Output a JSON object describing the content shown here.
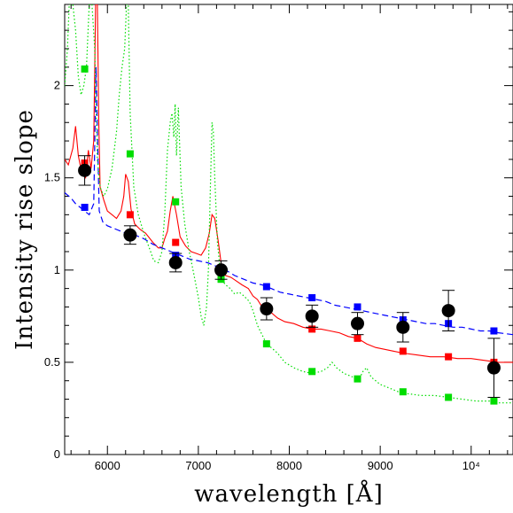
{
  "chart_data": {
    "type": "scatter",
    "xlabel": "wavelength [Å]",
    "ylabel": "Intensity rise slope",
    "xlim": [
      5530,
      10460
    ],
    "ylim": [
      0,
      2.44
    ],
    "x_ticks": [
      {
        "value": 6000,
        "label": "6000"
      },
      {
        "value": 7000,
        "label": "7000"
      },
      {
        "value": 8000,
        "label": "8000"
      },
      {
        "value": 9000,
        "label": "9000"
      },
      {
        "value": 10000,
        "label": "10⁴"
      }
    ],
    "y_ticks": [
      {
        "value": 0,
        "label": "0"
      },
      {
        "value": 0.5,
        "label": "0.5"
      },
      {
        "value": 1,
        "label": "1"
      },
      {
        "value": 1.5,
        "label": "1.5"
      },
      {
        "value": 2,
        "label": "2"
      }
    ],
    "colors": {
      "observed": "#000000",
      "red_model": "#ff0000",
      "blue_model": "#0000ff",
      "green_model": "#00dd00"
    },
    "observed": [
      {
        "x": 5750,
        "y": 1.54,
        "err": 0.08
      },
      {
        "x": 6250,
        "y": 1.19,
        "err": 0.05
      },
      {
        "x": 6750,
        "y": 1.04,
        "err": 0.05
      },
      {
        "x": 7250,
        "y": 1.0,
        "err": 0.05
      },
      {
        "x": 7750,
        "y": 0.79,
        "err": 0.06
      },
      {
        "x": 8250,
        "y": 0.75,
        "err": 0.06
      },
      {
        "x": 8750,
        "y": 0.71,
        "err": 0.06
      },
      {
        "x": 9250,
        "y": 0.69,
        "err": 0.08
      },
      {
        "x": 9750,
        "y": 0.78,
        "err": 0.11
      },
      {
        "x": 10250,
        "y": 0.47,
        "err": 0.16
      }
    ],
    "series": [
      {
        "style": "solid",
        "color": "#ff0000",
        "points": [
          [
            5750,
            1.58
          ],
          [
            6250,
            1.3
          ],
          [
            6750,
            1.15
          ],
          [
            7250,
            0.97
          ],
          [
            7750,
            0.79
          ],
          [
            8250,
            0.68
          ],
          [
            8750,
            0.63
          ],
          [
            9250,
            0.56
          ],
          [
            9750,
            0.53
          ],
          [
            10250,
            0.5
          ]
        ],
        "curve": [
          [
            5530,
            1.6
          ],
          [
            5570,
            1.57
          ],
          [
            5620,
            1.66
          ],
          [
            5650,
            1.78
          ],
          [
            5680,
            1.62
          ],
          [
            5720,
            1.52
          ],
          [
            5760,
            1.5
          ],
          [
            5790,
            1.65
          ],
          [
            5820,
            1.55
          ],
          [
            5850,
            1.7
          ],
          [
            5870,
            2.44
          ],
          [
            5890,
            2.44
          ],
          [
            5905,
            1.8
          ],
          [
            5920,
            1.45
          ],
          [
            5960,
            1.38
          ],
          [
            6000,
            1.32
          ],
          [
            6050,
            1.3
          ],
          [
            6100,
            1.28
          ],
          [
            6150,
            1.32
          ],
          [
            6180,
            1.4
          ],
          [
            6200,
            1.52
          ],
          [
            6230,
            1.48
          ],
          [
            6260,
            1.33
          ],
          [
            6300,
            1.25
          ],
          [
            6360,
            1.22
          ],
          [
            6420,
            1.2
          ],
          [
            6500,
            1.15
          ],
          [
            6560,
            1.12
          ],
          [
            6600,
            1.12
          ],
          [
            6630,
            1.17
          ],
          [
            6660,
            1.21
          ],
          [
            6690,
            1.32
          ],
          [
            6720,
            1.4
          ],
          [
            6760,
            1.3
          ],
          [
            6800,
            1.18
          ],
          [
            6860,
            1.13
          ],
          [
            6920,
            1.1
          ],
          [
            6980,
            1.09
          ],
          [
            7030,
            1.08
          ],
          [
            7080,
            1.12
          ],
          [
            7120,
            1.2
          ],
          [
            7150,
            1.3
          ],
          [
            7180,
            1.28
          ],
          [
            7220,
            1.15
          ],
          [
            7260,
            1.0
          ],
          [
            7300,
            0.97
          ],
          [
            7360,
            0.96
          ],
          [
            7420,
            0.94
          ],
          [
            7480,
            0.92
          ],
          [
            7550,
            0.9
          ],
          [
            7600,
            0.86
          ],
          [
            7650,
            0.84
          ],
          [
            7700,
            0.8
          ],
          [
            7750,
            0.78
          ],
          [
            7800,
            0.77
          ],
          [
            7870,
            0.74
          ],
          [
            7950,
            0.72
          ],
          [
            8050,
            0.71
          ],
          [
            8150,
            0.69
          ],
          [
            8250,
            0.68
          ],
          [
            8350,
            0.68
          ],
          [
            8450,
            0.67
          ],
          [
            8550,
            0.66
          ],
          [
            8650,
            0.64
          ],
          [
            8750,
            0.63
          ],
          [
            8850,
            0.6
          ],
          [
            8950,
            0.58
          ],
          [
            9050,
            0.57
          ],
          [
            9150,
            0.56
          ],
          [
            9250,
            0.55
          ],
          [
            9400,
            0.54
          ],
          [
            9550,
            0.53
          ],
          [
            9700,
            0.53
          ],
          [
            9850,
            0.52
          ],
          [
            10000,
            0.52
          ],
          [
            10150,
            0.51
          ],
          [
            10300,
            0.5
          ],
          [
            10460,
            0.5
          ]
        ]
      },
      {
        "style": "dashed",
        "color": "#0000ff",
        "points": [
          [
            5750,
            1.34
          ],
          [
            6250,
            1.18
          ],
          [
            6750,
            1.08
          ],
          [
            7250,
            1.01
          ],
          [
            7750,
            0.91
          ],
          [
            8250,
            0.85
          ],
          [
            8750,
            0.8
          ],
          [
            9250,
            0.73
          ],
          [
            9750,
            0.71
          ],
          [
            10250,
            0.67
          ]
        ],
        "curve": [
          [
            5530,
            1.42
          ],
          [
            5600,
            1.39
          ],
          [
            5650,
            1.36
          ],
          [
            5700,
            1.34
          ],
          [
            5750,
            1.32
          ],
          [
            5800,
            1.3
          ],
          [
            5850,
            1.36
          ],
          [
            5875,
            2.1
          ],
          [
            5890,
            1.75
          ],
          [
            5910,
            1.32
          ],
          [
            5950,
            1.26
          ],
          [
            6000,
            1.24
          ],
          [
            6100,
            1.22
          ],
          [
            6200,
            1.2
          ],
          [
            6300,
            1.19
          ],
          [
            6400,
            1.17
          ],
          [
            6500,
            1.14
          ],
          [
            6600,
            1.12
          ],
          [
            6700,
            1.1
          ],
          [
            6800,
            1.08
          ],
          [
            6900,
            1.06
          ],
          [
            7000,
            1.05
          ],
          [
            7100,
            1.04
          ],
          [
            7200,
            1.02
          ],
          [
            7300,
            1.0
          ],
          [
            7400,
            0.97
          ],
          [
            7500,
            0.95
          ],
          [
            7600,
            0.93
          ],
          [
            7700,
            0.92
          ],
          [
            7800,
            0.9
          ],
          [
            7900,
            0.88
          ],
          [
            8000,
            0.87
          ],
          [
            8100,
            0.86
          ],
          [
            8200,
            0.85
          ],
          [
            8300,
            0.84
          ],
          [
            8400,
            0.83
          ],
          [
            8500,
            0.81
          ],
          [
            8600,
            0.8
          ],
          [
            8700,
            0.79
          ],
          [
            8800,
            0.78
          ],
          [
            8900,
            0.77
          ],
          [
            9000,
            0.76
          ],
          [
            9100,
            0.75
          ],
          [
            9200,
            0.74
          ],
          [
            9300,
            0.73
          ],
          [
            9400,
            0.72
          ],
          [
            9500,
            0.71
          ],
          [
            9600,
            0.71
          ],
          [
            9700,
            0.7
          ],
          [
            9800,
            0.69
          ],
          [
            9900,
            0.69
          ],
          [
            10000,
            0.68
          ],
          [
            10100,
            0.67
          ],
          [
            10200,
            0.67
          ],
          [
            10300,
            0.66
          ],
          [
            10460,
            0.65
          ]
        ]
      },
      {
        "style": "dotted",
        "color": "#00dd00",
        "points": [
          [
            5750,
            2.09
          ],
          [
            6250,
            1.63
          ],
          [
            6750,
            1.37
          ],
          [
            7250,
            0.95
          ],
          [
            7750,
            0.6
          ],
          [
            8250,
            0.45
          ],
          [
            8750,
            0.41
          ],
          [
            9250,
            0.34
          ],
          [
            9750,
            0.31
          ],
          [
            10250,
            0.29
          ]
        ],
        "curve": [
          [
            5530,
            2.0
          ],
          [
            5560,
            2.2
          ],
          [
            5580,
            2.44
          ],
          [
            5620,
            2.44
          ],
          [
            5650,
            2.3
          ],
          [
            5680,
            2.05
          ],
          [
            5710,
            1.95
          ],
          [
            5740,
            2.0
          ],
          [
            5770,
            2.1
          ],
          [
            5800,
            2.44
          ],
          [
            5830,
            2.44
          ],
          [
            5860,
            2.2
          ],
          [
            5890,
            1.6
          ],
          [
            5920,
            1.45
          ],
          [
            5960,
            1.4
          ],
          [
            6000,
            1.44
          ],
          [
            6050,
            1.55
          ],
          [
            6100,
            1.75
          ],
          [
            6130,
            1.95
          ],
          [
            6160,
            2.1
          ],
          [
            6190,
            2.2
          ],
          [
            6210,
            2.44
          ],
          [
            6230,
            2.44
          ],
          [
            6250,
            1.85
          ],
          [
            6290,
            1.45
          ],
          [
            6340,
            1.3
          ],
          [
            6400,
            1.2
          ],
          [
            6460,
            1.12
          ],
          [
            6510,
            1.05
          ],
          [
            6560,
            1.04
          ],
          [
            6600,
            1.1
          ],
          [
            6630,
            1.3
          ],
          [
            6660,
            1.65
          ],
          [
            6690,
            1.8
          ],
          [
            6710,
            1.85
          ],
          [
            6730,
            1.72
          ],
          [
            6745,
            1.9
          ],
          [
            6760,
            1.62
          ],
          [
            6780,
            1.88
          ],
          [
            6810,
            1.45
          ],
          [
            6850,
            1.25
          ],
          [
            6900,
            1.1
          ],
          [
            6950,
            0.98
          ],
          [
            7000,
            0.85
          ],
          [
            7030,
            0.75
          ],
          [
            7060,
            0.7
          ],
          [
            7090,
            0.8
          ],
          [
            7110,
            1.0
          ],
          [
            7130,
            1.4
          ],
          [
            7150,
            1.8
          ],
          [
            7165,
            1.75
          ],
          [
            7180,
            1.5
          ],
          [
            7210,
            1.15
          ],
          [
            7250,
            0.95
          ],
          [
            7300,
            0.92
          ],
          [
            7350,
            0.9
          ],
          [
            7400,
            0.87
          ],
          [
            7450,
            0.88
          ],
          [
            7500,
            0.86
          ],
          [
            7560,
            0.83
          ],
          [
            7600,
            0.78
          ],
          [
            7650,
            0.7
          ],
          [
            7700,
            0.65
          ],
          [
            7750,
            0.6
          ],
          [
            7800,
            0.58
          ],
          [
            7870,
            0.55
          ],
          [
            7950,
            0.5
          ],
          [
            8050,
            0.47
          ],
          [
            8150,
            0.45
          ],
          [
            8250,
            0.44
          ],
          [
            8350,
            0.45
          ],
          [
            8420,
            0.47
          ],
          [
            8470,
            0.5
          ],
          [
            8520,
            0.47
          ],
          [
            8600,
            0.44
          ],
          [
            8700,
            0.42
          ],
          [
            8760,
            0.4
          ],
          [
            8810,
            0.45
          ],
          [
            8850,
            0.47
          ],
          [
            8900,
            0.42
          ],
          [
            9000,
            0.38
          ],
          [
            9100,
            0.36
          ],
          [
            9200,
            0.34
          ],
          [
            9300,
            0.33
          ],
          [
            9450,
            0.32
          ],
          [
            9600,
            0.32
          ],
          [
            9750,
            0.31
          ],
          [
            9900,
            0.3
          ],
          [
            10050,
            0.29
          ],
          [
            10200,
            0.29
          ],
          [
            10300,
            0.28
          ],
          [
            10460,
            0.28
          ]
        ]
      }
    ]
  }
}
